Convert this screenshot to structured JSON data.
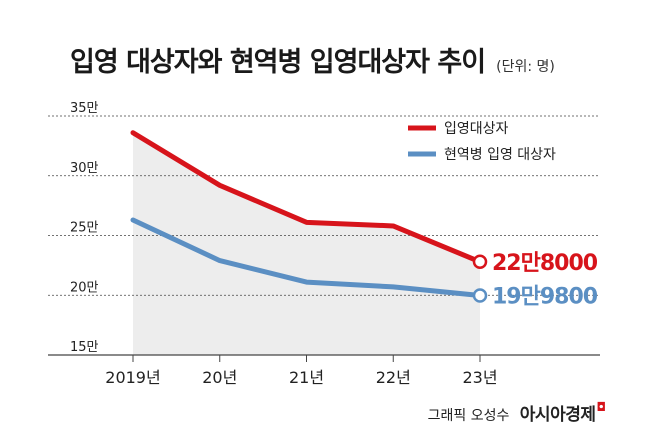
{
  "header": {
    "title": "입영 대상자와 현역병 입영대상자 추이",
    "unit": "(단위: 명)"
  },
  "credit": {
    "author": "그래픽 오성수",
    "brand": "아시아경제",
    "brand_mark": "◘"
  },
  "colors": {
    "series1": "#d7141b",
    "series2": "#5b8fc3",
    "area": "#ededed",
    "grid": "#444444"
  },
  "chart_data": {
    "type": "line",
    "categories": [
      "2019년",
      "20년",
      "21년",
      "22년",
      "23년"
    ],
    "y_ticks": [
      {
        "value": 15,
        "label": "15만"
      },
      {
        "value": 20,
        "label": "20만"
      },
      {
        "value": 25,
        "label": "25만"
      },
      {
        "value": 30,
        "label": "30만"
      },
      {
        "value": 35,
        "label": "35만"
      }
    ],
    "ylim": [
      15,
      35
    ],
    "series": [
      {
        "name": "입영대상자",
        "values": [
          33.6,
          29.2,
          26.1,
          25.8,
          22.8
        ],
        "end_label": "22만8000",
        "shaded": true
      },
      {
        "name": "현역병 입영 대상자",
        "values": [
          26.3,
          22.9,
          21.1,
          20.7,
          19.98
        ],
        "end_label": "19만9800"
      }
    ],
    "legend_position": "top-right",
    "grid": true,
    "title": "",
    "xlabel": "",
    "ylabel": ""
  }
}
